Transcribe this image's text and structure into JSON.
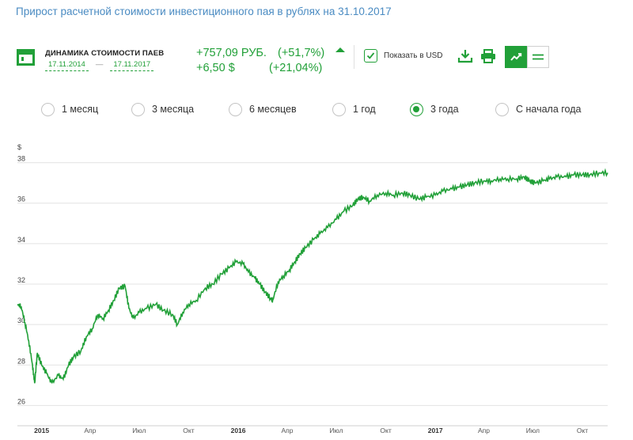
{
  "page": {
    "title": "Прирост расчетной стоимости инвестиционного пая в рублях на 31.10.2017"
  },
  "fund": {
    "dynamics_title": "ДИНАМИКА СТОИМОСТИ ПАЕВ",
    "date_from": "17.11.2014",
    "date_sep": "—",
    "date_to": "17.11.2017"
  },
  "change": {
    "rub_abs": "+757,09 РУБ.",
    "rub_pct": "(+51,7%)",
    "usd_abs": "+6,50 $",
    "usd_pct": "(+21,04%)"
  },
  "toolbar": {
    "show_usd_label": "Показать в USD",
    "show_usd_checked": true,
    "icons": [
      "download-icon",
      "print-icon",
      "line-chart-icon",
      "table-view-icon"
    ],
    "active_view": "chart"
  },
  "periods": {
    "selected": "3 года",
    "options": [
      "1 месяц",
      "3 месяца",
      "6 месяцев",
      "1 год",
      "3 года",
      "С начала года"
    ]
  },
  "colors": {
    "accent": "#21a038",
    "title": "#4a8bc2",
    "grid": "#e3e3e3"
  },
  "chart_data": {
    "type": "line",
    "ylabel": "$",
    "ylim": [
      25,
      39
    ],
    "yticks": [
      26,
      28,
      30,
      32,
      34,
      36,
      38
    ],
    "yticks_labels": [
      "26",
      "28",
      "30",
      "32",
      "34",
      "36",
      "38"
    ],
    "xlim": [
      "2014-11-17",
      "2017-11-17"
    ],
    "xticks": [
      {
        "label": "2015",
        "date": "2015-01-01",
        "bold": true
      },
      {
        "label": "Апр",
        "date": "2015-04-01",
        "bold": false
      },
      {
        "label": "Июл",
        "date": "2015-07-01",
        "bold": false
      },
      {
        "label": "Окт",
        "date": "2015-10-01",
        "bold": false
      },
      {
        "label": "2016",
        "date": "2016-01-01",
        "bold": true
      },
      {
        "label": "Апр",
        "date": "2016-04-01",
        "bold": false
      },
      {
        "label": "Июл",
        "date": "2016-07-01",
        "bold": false
      },
      {
        "label": "Окт",
        "date": "2016-10-01",
        "bold": false
      },
      {
        "label": "2017",
        "date": "2017-01-01",
        "bold": true
      },
      {
        "label": "Апр",
        "date": "2017-04-01",
        "bold": false
      },
      {
        "label": "Июл",
        "date": "2017-07-01",
        "bold": false
      },
      {
        "label": "Окт",
        "date": "2017-10-01",
        "bold": false
      }
    ],
    "grid": true,
    "legend": "none",
    "series": [
      {
        "color": "#21a038",
        "points": [
          [
            "2014-11-17",
            31.0
          ],
          [
            "2014-11-24",
            30.9
          ],
          [
            "2014-12-01",
            30.1
          ],
          [
            "2014-12-08",
            29.2
          ],
          [
            "2014-12-15",
            28.0
          ],
          [
            "2014-12-19",
            27.1
          ],
          [
            "2014-12-24",
            28.6
          ],
          [
            "2015-01-01",
            28.0
          ],
          [
            "2015-01-10",
            27.6
          ],
          [
            "2015-01-20",
            27.1
          ],
          [
            "2015-02-01",
            27.5
          ],
          [
            "2015-02-10",
            27.3
          ],
          [
            "2015-02-20",
            28.0
          ],
          [
            "2015-03-01",
            28.4
          ],
          [
            "2015-03-15",
            28.7
          ],
          [
            "2015-03-25",
            29.4
          ],
          [
            "2015-04-05",
            29.8
          ],
          [
            "2015-04-15",
            30.5
          ],
          [
            "2015-04-25",
            30.3
          ],
          [
            "2015-05-05",
            30.7
          ],
          [
            "2015-05-15",
            31.2
          ],
          [
            "2015-05-25",
            31.8
          ],
          [
            "2015-06-05",
            31.9
          ],
          [
            "2015-06-12",
            30.8
          ],
          [
            "2015-06-20",
            30.3
          ],
          [
            "2015-07-01",
            30.6
          ],
          [
            "2015-07-15",
            30.8
          ],
          [
            "2015-08-01",
            31.0
          ],
          [
            "2015-08-15",
            30.7
          ],
          [
            "2015-09-01",
            30.5
          ],
          [
            "2015-09-10",
            30.0
          ],
          [
            "2015-09-20",
            30.6
          ],
          [
            "2015-10-01",
            31.0
          ],
          [
            "2015-10-15",
            31.2
          ],
          [
            "2015-11-01",
            31.8
          ],
          [
            "2015-11-15",
            32.0
          ],
          [
            "2015-12-01",
            32.5
          ],
          [
            "2015-12-15",
            32.8
          ],
          [
            "2015-12-28",
            33.1
          ],
          [
            "2016-01-10",
            33.0
          ],
          [
            "2016-01-20",
            32.6
          ],
          [
            "2016-02-01",
            32.3
          ],
          [
            "2016-02-10",
            32.0
          ],
          [
            "2016-02-20",
            31.6
          ],
          [
            "2016-03-01",
            31.3
          ],
          [
            "2016-03-05",
            31.2
          ],
          [
            "2016-03-15",
            32.1
          ],
          [
            "2016-03-25",
            32.4
          ],
          [
            "2016-04-05",
            32.7
          ],
          [
            "2016-04-15",
            33.1
          ],
          [
            "2016-04-25",
            33.5
          ],
          [
            "2016-05-05",
            33.8
          ],
          [
            "2016-05-20",
            34.2
          ],
          [
            "2016-06-01",
            34.5
          ],
          [
            "2016-06-15",
            34.8
          ],
          [
            "2016-07-01",
            35.2
          ],
          [
            "2016-07-15",
            35.6
          ],
          [
            "2016-08-01",
            35.9
          ],
          [
            "2016-08-10",
            36.2
          ],
          [
            "2016-08-20",
            36.3
          ],
          [
            "2016-09-01",
            36.1
          ],
          [
            "2016-09-15",
            36.4
          ],
          [
            "2016-10-01",
            36.5
          ],
          [
            "2016-10-15",
            36.4
          ],
          [
            "2016-11-01",
            36.5
          ],
          [
            "2016-11-15",
            36.4
          ],
          [
            "2016-12-01",
            36.2
          ],
          [
            "2016-12-15",
            36.3
          ],
          [
            "2017-01-01",
            36.4
          ],
          [
            "2017-01-15",
            36.6
          ],
          [
            "2017-02-01",
            36.7
          ],
          [
            "2017-02-15",
            36.8
          ],
          [
            "2017-03-01",
            36.9
          ],
          [
            "2017-03-15",
            37.0
          ],
          [
            "2017-04-01",
            37.1
          ],
          [
            "2017-04-15",
            37.1
          ],
          [
            "2017-05-01",
            37.2
          ],
          [
            "2017-05-15",
            37.2
          ],
          [
            "2017-06-01",
            37.2
          ],
          [
            "2017-06-15",
            37.3
          ],
          [
            "2017-06-25",
            37.1
          ],
          [
            "2017-07-05",
            37.0
          ],
          [
            "2017-07-20",
            37.1
          ],
          [
            "2017-08-01",
            37.2
          ],
          [
            "2017-08-15",
            37.3
          ],
          [
            "2017-09-01",
            37.3
          ],
          [
            "2017-09-15",
            37.4
          ],
          [
            "2017-10-01",
            37.4
          ],
          [
            "2017-10-15",
            37.4
          ],
          [
            "2017-11-01",
            37.5
          ],
          [
            "2017-11-17",
            37.5
          ]
        ]
      }
    ]
  }
}
